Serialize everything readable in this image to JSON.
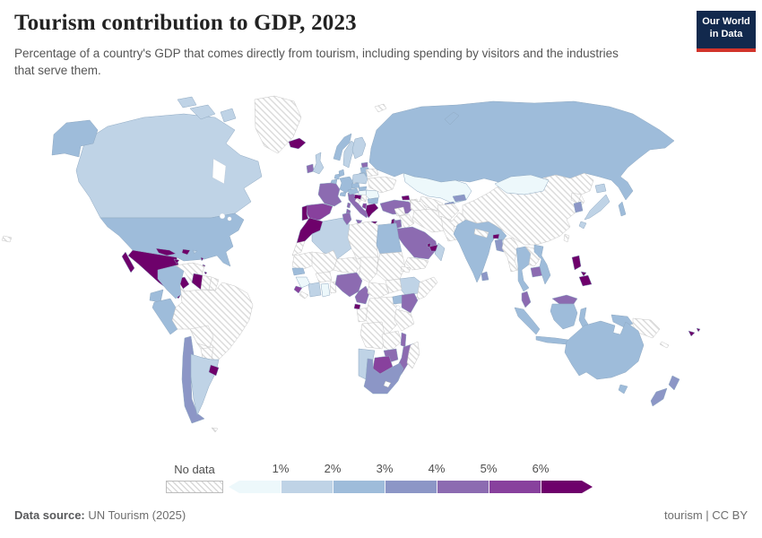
{
  "header": {
    "title": "Tourism contribution to GDP, 2023",
    "subtitle": "Percentage of a country's GDP that comes directly from tourism, including spending by visitors and the industries that serve them.",
    "logo_line1": "Our World",
    "logo_line2": "in Data",
    "logo_bg": "#12294d",
    "logo_accent": "#d3342b"
  },
  "legend": {
    "no_data_label": "No data",
    "ticks": [
      "1%",
      "2%",
      "3%",
      "4%",
      "5%",
      "6%"
    ]
  },
  "footer": {
    "source_label": "Data source:",
    "source_value": " UN Tourism (2025)",
    "license": "tourism | CC BY"
  },
  "chart_data": {
    "type": "heatmap",
    "subtype": "world-choropleth",
    "title": "Tourism contribution to GDP, 2023",
    "unit": "% of GDP",
    "legend_position": "bottom",
    "no_data_style": "diagonal-hatch",
    "bins": [
      {
        "label": "<1%",
        "color": "#edf8fb"
      },
      {
        "label": "1-2%",
        "color": "#bfd3e6"
      },
      {
        "label": "2-3%",
        "color": "#9ebcda"
      },
      {
        "label": "3-4%",
        "color": "#8c96c6"
      },
      {
        "label": "4-5%",
        "color": "#8c6bb1"
      },
      {
        "label": "5-6%",
        "color": "#88419d"
      },
      {
        "label": ">6%",
        "color": "#6e016b"
      }
    ],
    "countries": {
      "Canada": "1-2%",
      "United States": "2-3%",
      "Greenland": "No data",
      "Mexico": ">6%",
      "Guatemala": ">6%",
      "Honduras": "No data",
      "Nicaragua": "No data",
      "Costa Rica": "2-3%",
      "Panama": ">6%",
      "Cuba": ">6%",
      "Jamaica": ">6%",
      "Dominican Republic": ">6%",
      "Puerto Rico": "1-2%",
      "Lesser Antilles": ">6%",
      "Colombia": "2-3%",
      "Venezuela": "No data",
      "Guyana": ">6%",
      "Suriname": "No data",
      "French Guiana": "No data",
      "Ecuador": "2-3%",
      "Peru": "2-3%",
      "Brazil": "No data",
      "Bolivia": "No data",
      "Paraguay": "No data",
      "Chile": "3-4%",
      "Argentina": "1-2%",
      "Uruguay": ">6%",
      "Falkland Islands": "No data",
      "Iceland": ">6%",
      "Ireland": "4-5%",
      "United Kingdom": "1-2%",
      "Norway": "2-3%",
      "Sweden": "1-2%",
      "Finland": "1-2%",
      "Denmark": "2-3%",
      "Estonia": "4-5%",
      "Latvia": "2-3%",
      "Lithuania": "2-3%",
      "Poland": "1-2%",
      "Germany": "2-3%",
      "Netherlands": "2-3%",
      "Belgium": "2-3%",
      "France": "4-5%",
      "Spain": "5-6%",
      "Portugal": ">6%",
      "Italy": "4-5%",
      "Switzerland": "2-3%",
      "Austria": "2-3%",
      "Czechia": "2-3%",
      "Slovakia": "2-3%",
      "Hungary": "<1%",
      "Romania": "<1%",
      "Bulgaria": "2-3%",
      "Serbia": "No data",
      "Croatia": ">6%",
      "Bosnia": "No data",
      "Albania": "5-6%",
      "Greece": ">6%",
      "Ukraine": "No data",
      "Belarus": "No data",
      "Russia": "2-3%",
      "Turkey": "4-5%",
      "Cyprus": "4-5%",
      "Georgia": ">6%",
      "Azerbaijan": "No data",
      "Svalbard": "No data",
      "Kazakhstan": "<1%",
      "Uzbekistan": "No data",
      "Turkmenistan": "No data",
      "Tajikistan": "3-4%",
      "Kyrgyzstan": "3-4%",
      "Mongolia": "<1%",
      "China": "No data",
      "North Korea": "No data",
      "South Korea": "3-4%",
      "Japan": "1-2%",
      "Taiwan": "No data",
      "Afghanistan": "No data",
      "Pakistan": "No data",
      "India": "2-3%",
      "Nepal": "No data",
      "Bhutan": ">6%",
      "Bangladesh": "3-4%",
      "Sri Lanka": "3-4%",
      "Myanmar": "No data",
      "Thailand": "2-3%",
      "Laos": "No data",
      "Cambodia": "4-5%",
      "Vietnam": "2-3%",
      "Malaysia": "4-5%",
      "Indonesia": "2-3%",
      "Philippines": ">6%",
      "Papua New Guinea": "No data",
      "Timor-Leste": "No data",
      "Syria": "No data",
      "Iraq": "No data",
      "Iran": "No data",
      "Israel": ">6%",
      "Jordan": "4-5%",
      "Kuwait": "No data",
      "Saudi Arabia": "4-5%",
      "Qatar": ">6%",
      "United Arab Emirates": ">6%",
      "Oman": "1-2%",
      "Yemen": "No data",
      "Morocco": ">6%",
      "Western Sahara": "No data",
      "Algeria": "1-2%",
      "Tunisia": "4-5%",
      "Libya": "No data",
      "Egypt": "2-3%",
      "Mauritania": "No data",
      "Mali": "No data",
      "Niger": "No data",
      "Chad": "No data",
      "Sudan": "No data",
      "Eritrea": "No data",
      "Senegal": "2-3%",
      "Guinea": "<1%",
      "Sierra Leone": "5-6%",
      "Liberia": "No data",
      "Ivory Coast": "1-2%",
      "Ghana": "<1%",
      "Burkina Faso": "No data",
      "Benin": "No data",
      "Nigeria": "4-5%",
      "Cameroon": "4-5%",
      "Equatorial Guinea": ">6%",
      "Gabon": "No data",
      "Central African Republic": "No data",
      "DR Congo": "No data",
      "South Sudan": "No data",
      "Ethiopia": "1-2%",
      "Somalia": "No data",
      "Uganda": "2-3%",
      "Kenya": "4-5%",
      "Tanzania": "No data",
      "Angola": "No data",
      "Zambia": "No data",
      "Malawi": "4-5%",
      "Mozambique": "4-5%",
      "Zimbabwe": "4-5%",
      "Botswana": "5-6%",
      "Namibia": "1-2%",
      "South Africa": "3-4%",
      "Madagascar": "No data",
      "Australia": "2-3%",
      "New Zealand": "3-4%",
      "Fiji": ">6%",
      "New Caledonia": "No data",
      "Aleutian Islands": "No data"
    }
  }
}
